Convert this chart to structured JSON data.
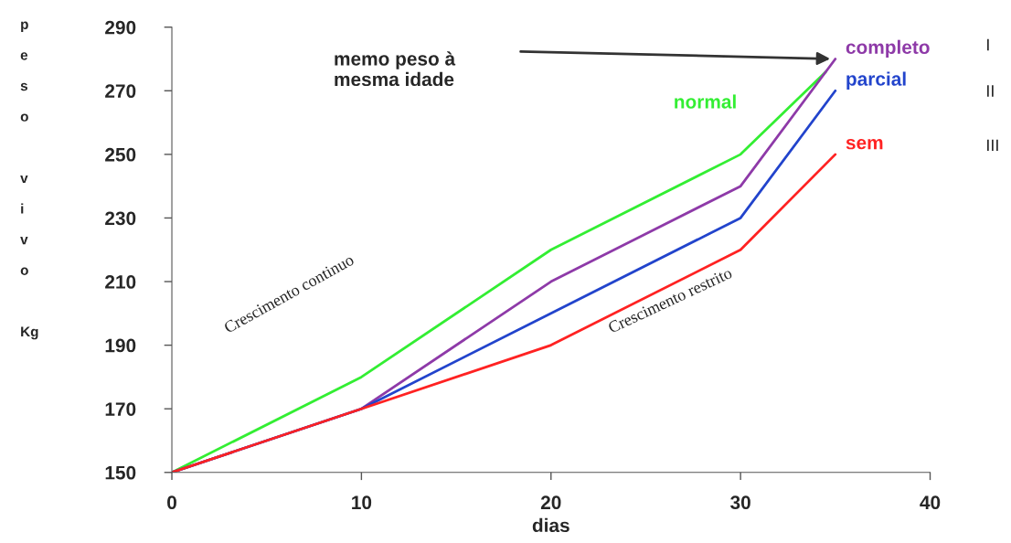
{
  "chart_data": {
    "type": "line",
    "xlabel": "dias",
    "ylabel": "peso vivo Kg",
    "xlim": [
      0,
      40
    ],
    "xticks": [
      0,
      10,
      20,
      30,
      40
    ],
    "ylim": [
      150,
      290
    ],
    "yticks": [
      150,
      170,
      190,
      210,
      230,
      250,
      270,
      290
    ],
    "grid": false,
    "marker": "none",
    "line_style": "solid",
    "series": [
      {
        "name": "normal",
        "color": "#33ee33",
        "x": [
          0,
          10,
          20,
          30,
          34.5
        ],
        "values": [
          150,
          180,
          220,
          250,
          276
        ]
      },
      {
        "name": "completo",
        "color": "#8e3aa8",
        "x": [
          0,
          10,
          20,
          30,
          35
        ],
        "values": [
          150,
          170,
          210,
          240,
          280
        ]
      },
      {
        "name": "parcial",
        "color": "#2244cc",
        "x": [
          0,
          10,
          20,
          30,
          35
        ],
        "values": [
          150,
          170,
          200,
          230,
          270
        ]
      },
      {
        "name": "sem",
        "color": "#ff2222",
        "x": [
          0,
          10,
          20,
          30,
          35
        ],
        "values": [
          150,
          170,
          190,
          220,
          250
        ]
      }
    ],
    "annotations": [
      "memo peso à\nmesma idade",
      "I",
      "II",
      "III",
      "Crescimento continuo",
      "Crescimento restrito"
    ]
  }
}
